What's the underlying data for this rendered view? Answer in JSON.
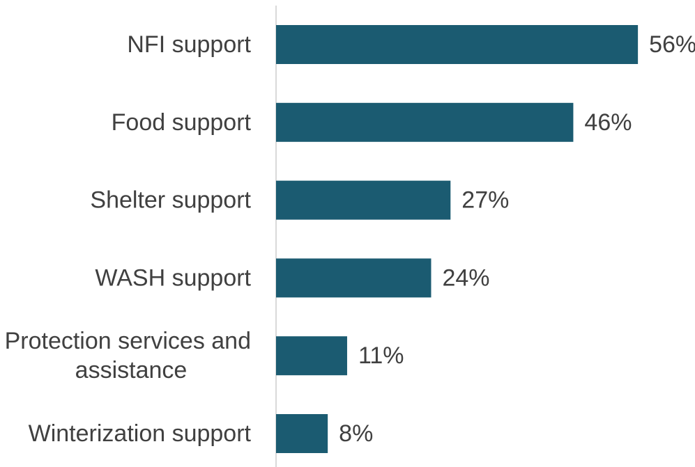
{
  "chart_data": {
    "type": "bar",
    "orientation": "horizontal",
    "categories": [
      [
        "NFI support"
      ],
      [
        "Food support"
      ],
      [
        "Shelter support"
      ],
      [
        "WASH support"
      ],
      [
        "Protection services and",
        "assistance"
      ],
      [
        "Winterization support"
      ]
    ],
    "values": [
      56,
      46,
      27,
      24,
      11,
      8
    ],
    "value_labels": [
      "56%",
      "46%",
      "27%",
      "24%",
      "11%",
      "8%"
    ],
    "unit": "%",
    "title": "",
    "xlabel": "",
    "ylabel": "",
    "xlim": [
      0,
      56
    ],
    "grid": false,
    "legend": "none",
    "bar_color": "#1b5b71",
    "axis_color": "#d9d9d9",
    "text_color": "#404040"
  }
}
